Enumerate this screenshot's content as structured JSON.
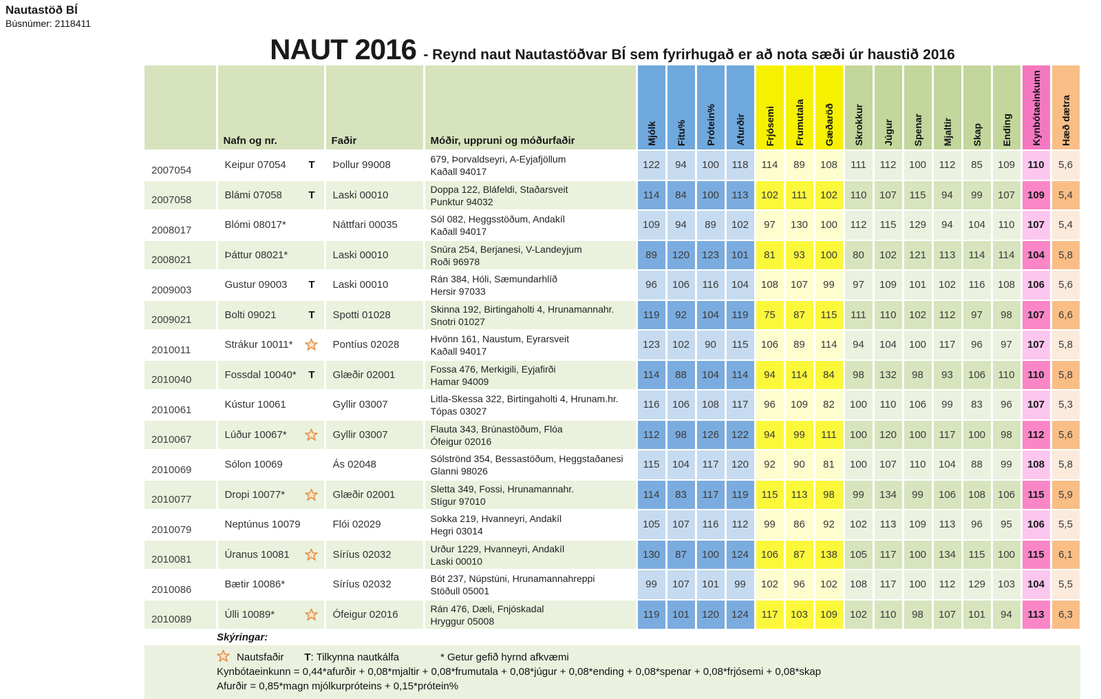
{
  "page": {
    "org_name": "Nautastöð BÍ",
    "bus_number": "Búsnúmer: 2118411",
    "title_main": "NAUT 2016",
    "title_sub": "- Reynd naut Nautastöðvar BÍ sem fyrirhugað er að nota sæði úr haustið 2016"
  },
  "colors": {
    "header_green_light": "#D6E3BC",
    "row_green_light": "#EAF1DD",
    "blue_header": "#6FA8DC",
    "blue_dark": "#7BACDF",
    "blue_light": "#C6DBF0",
    "yellow_header": "#F5F100",
    "yellow_dark": "#FBF83B",
    "yellow_light": "#FEFDCE",
    "green_header": "#C3D69B",
    "green_dark": "#D7E4BD",
    "green_light": "#EBF1DF",
    "pink_header": "#F478C0",
    "pink_dark": "#FB86C7",
    "pink_light": "#FDC6EF",
    "orange_header": "#F9BE86",
    "orange_dark": "#F9BE86",
    "orange_light": "#FCEADC"
  },
  "table": {
    "left_headers": [
      "",
      "Nafn og nr.",
      "Faðir",
      "Móðir, uppruni og móðurfaðir"
    ],
    "value_headers": [
      "Mjólk",
      "Fitu%",
      "Prótein%",
      "Afurðir",
      "Frjósemi",
      "Frumutala",
      "Gæðaröð",
      "Skrokkur",
      "Júgur",
      "Spenar",
      "Mjaltir",
      "Skap",
      "Ending",
      "Kynbótaeinkunn",
      "Hæð dætra"
    ],
    "column_groups": [
      "blue",
      "blue",
      "blue",
      "blue",
      "yellow",
      "yellow",
      "yellow",
      "green",
      "green",
      "green",
      "green",
      "green",
      "green",
      "pink",
      "orange"
    ],
    "rows": [
      {
        "id": "2007054",
        "name": "Keipur 07054",
        "marker": "T",
        "father": "Þollur 99008",
        "mother": "679, Þorvaldseyri, A-Eyjafjöllum",
        "mother_sire": "Kaðall 94017",
        "values": [
          "122",
          "94",
          "100",
          "118",
          "114",
          "89",
          "108",
          "111",
          "112",
          "100",
          "112",
          "85",
          "109",
          "110",
          "5,6"
        ]
      },
      {
        "id": "2007058",
        "name": "Blámi 07058",
        "marker": "T",
        "father": "Laski 00010",
        "mother": "Doppa 122, Bláfeldi, Staðarsveit",
        "mother_sire": "Punktur 94032",
        "values": [
          "114",
          "84",
          "100",
          "113",
          "102",
          "111",
          "102",
          "110",
          "107",
          "115",
          "94",
          "99",
          "107",
          "109",
          "5,4"
        ]
      },
      {
        "id": "2008017",
        "name": "Blómi 08017*",
        "marker": "",
        "father": "Náttfari 00035",
        "mother": "Sól 082, Heggsstöðum, Andakíl",
        "mother_sire": "Kaðall 94017",
        "values": [
          "109",
          "94",
          "89",
          "102",
          "97",
          "130",
          "100",
          "112",
          "115",
          "129",
          "94",
          "104",
          "110",
          "107",
          "5,4"
        ]
      },
      {
        "id": "2008021",
        "name": "Þáttur 08021*",
        "marker": "",
        "father": "Laski 00010",
        "mother": "Snúra 254, Berjanesi, V-Landeyjum",
        "mother_sire": "Roði 96978",
        "values": [
          "89",
          "120",
          "123",
          "101",
          "81",
          "93",
          "100",
          "80",
          "102",
          "121",
          "113",
          "114",
          "114",
          "104",
          "5,8"
        ]
      },
      {
        "id": "2009003",
        "name": "Gustur 09003",
        "marker": "T",
        "father": "Laski 00010",
        "mother": "Rán 384, Hóli, Sæmundarhlíð",
        "mother_sire": "Hersir 97033",
        "values": [
          "96",
          "106",
          "116",
          "104",
          "108",
          "107",
          "99",
          "97",
          "109",
          "101",
          "102",
          "116",
          "108",
          "106",
          "5,6"
        ]
      },
      {
        "id": "2009021",
        "name": "Bolti 09021",
        "marker": "T",
        "father": "Spotti 01028",
        "mother": "Skinna 192, Birtingaholti 4, Hrunamannahr.",
        "mother_sire": "Snotri 01027",
        "values": [
          "119",
          "92",
          "104",
          "119",
          "75",
          "87",
          "115",
          "111",
          "110",
          "102",
          "112",
          "97",
          "98",
          "107",
          "6,6"
        ]
      },
      {
        "id": "2010011",
        "name": "Strákur 10011*",
        "marker": "star",
        "father": "Pontíus 02028",
        "mother": "Hvönn 161, Naustum, Eyrarsveit",
        "mother_sire": "Kaðall 94017",
        "values": [
          "123",
          "102",
          "90",
          "115",
          "106",
          "89",
          "114",
          "94",
          "104",
          "100",
          "117",
          "96",
          "97",
          "107",
          "5,8"
        ]
      },
      {
        "id": "2010040",
        "name": "Fossdal 10040*",
        "marker": "T",
        "father": "Glæðir 02001",
        "mother": "Fossa 476, Merkigili, Eyjafirði",
        "mother_sire": "Hamar 94009",
        "values": [
          "114",
          "88",
          "104",
          "114",
          "94",
          "114",
          "84",
          "98",
          "132",
          "98",
          "93",
          "106",
          "110",
          "110",
          "5,8"
        ]
      },
      {
        "id": "2010061",
        "name": "Kústur 10061",
        "marker": "",
        "father": "Gyllir 03007",
        "mother": "Litla-Skessa 322, Birtingaholti 4, Hrunam.hr.",
        "mother_sire": "Tópas 03027",
        "values": [
          "116",
          "106",
          "108",
          "117",
          "96",
          "109",
          "82",
          "100",
          "110",
          "106",
          "99",
          "83",
          "96",
          "107",
          "5,3"
        ]
      },
      {
        "id": "2010067",
        "name": "Lúður 10067*",
        "marker": "star",
        "father": "Gyllir 03007",
        "mother": "Flauta 343, Brúnastöðum, Flóa",
        "mother_sire": "Ófeigur 02016",
        "values": [
          "112",
          "98",
          "126",
          "122",
          "94",
          "99",
          "111",
          "100",
          "120",
          "100",
          "117",
          "100",
          "98",
          "112",
          "5,6"
        ]
      },
      {
        "id": "2010069",
        "name": "Sólon 10069",
        "marker": "",
        "father": "Ás 02048",
        "mother": "Sólströnd 354, Bessastöðum, Heggstaðanesi",
        "mother_sire": "Glanni 98026",
        "values": [
          "115",
          "104",
          "117",
          "120",
          "92",
          "90",
          "81",
          "100",
          "107",
          "110",
          "104",
          "88",
          "99",
          "108",
          "5,8"
        ]
      },
      {
        "id": "2010077",
        "name": "Dropi 10077*",
        "marker": "star",
        "father": "Glæðir 02001",
        "mother": "Sletta 349, Fossi, Hrunamannahr.",
        "mother_sire": "Stígur 97010",
        "values": [
          "114",
          "83",
          "117",
          "119",
          "115",
          "113",
          "98",
          "99",
          "134",
          "99",
          "106",
          "108",
          "106",
          "115",
          "5,9"
        ]
      },
      {
        "id": "2010079",
        "name": "Neptúnus 10079",
        "marker": "",
        "father": "Flói 02029",
        "mother": "Sokka 219, Hvanneyri, Andakíl",
        "mother_sire": "Hegri 03014",
        "values": [
          "105",
          "107",
          "116",
          "112",
          "99",
          "86",
          "92",
          "102",
          "113",
          "109",
          "113",
          "96",
          "95",
          "106",
          "5,5"
        ]
      },
      {
        "id": "2010081",
        "name": "Úranus 10081",
        "marker": "star",
        "father": "Síríus 02032",
        "mother": "Urður 1229, Hvanneyri, Andakíl",
        "mother_sire": "Laski 00010",
        "values": [
          "130",
          "87",
          "100",
          "124",
          "106",
          "87",
          "138",
          "105",
          "117",
          "100",
          "134",
          "115",
          "100",
          "115",
          "6,1"
        ]
      },
      {
        "id": "2010086",
        "name": "Bætir 10086*",
        "marker": "",
        "father": "Síríus 02032",
        "mother": "Bót 237, Núpstúni, Hrunamannahreppi",
        "mother_sire": "Stöðull 05001",
        "values": [
          "99",
          "107",
          "101",
          "99",
          "102",
          "96",
          "102",
          "108",
          "117",
          "100",
          "112",
          "129",
          "103",
          "104",
          "5,5"
        ]
      },
      {
        "id": "2010089",
        "name": "Úlli 10089*",
        "marker": "star",
        "father": "Ófeigur 02016",
        "mother": "Rán 476, Dæli, Fnjóskadal",
        "mother_sire": "Hryggur 05008",
        "values": [
          "119",
          "101",
          "120",
          "124",
          "117",
          "103",
          "109",
          "102",
          "110",
          "98",
          "107",
          "101",
          "94",
          "113",
          "6,3"
        ]
      }
    ]
  },
  "footer": {
    "heading": "Skýringar:",
    "legend_star": "Nautsfaðir",
    "legend_t_label": "T",
    "legend_t_text": ": Tilkynna nautkálfa",
    "legend_horned": "* Getur gefið hyrnd afkvæmi",
    "formula1": "Kynbótaeinkunn = 0,44*afurðir + 0,08*mjaltir + 0,08*frumutala + 0,08*júgur + 0,08*ending + 0,08*spenar + 0,08*frjósemi + 0,08*skap",
    "formula2": "Afurðir = 0,85*magn mjólkurpróteins + 0,15*prótein%"
  }
}
